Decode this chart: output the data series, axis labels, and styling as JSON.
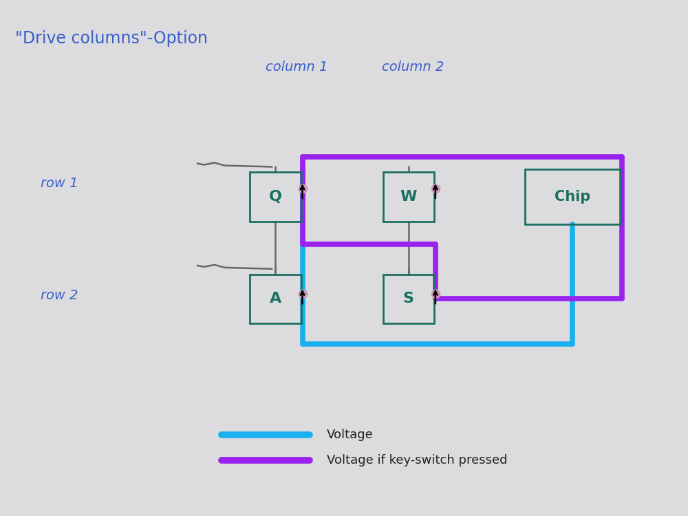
{
  "title": "\"Drive columns\"-Option",
  "title_color": "#3a5fcc",
  "bg_color": "#dcdcde",
  "col1_label": "column 1",
  "col2_label": "column 2",
  "row1_label": "row 1",
  "row2_label": "row 2",
  "chip_label": "Chip",
  "blue_color": "#1ab0f0",
  "purple_color": "#9922ee",
  "dark_green": "#1a7060",
  "gray_line": "#666666",
  "diode_color": "#cc99bb",
  "legend_voltage": "Voltage",
  "legend_voltage_if": "Voltage if key-switch pressed",
  "key_lw": 2.0,
  "circuit_lw": 5.5,
  "gray_lw": 1.8
}
